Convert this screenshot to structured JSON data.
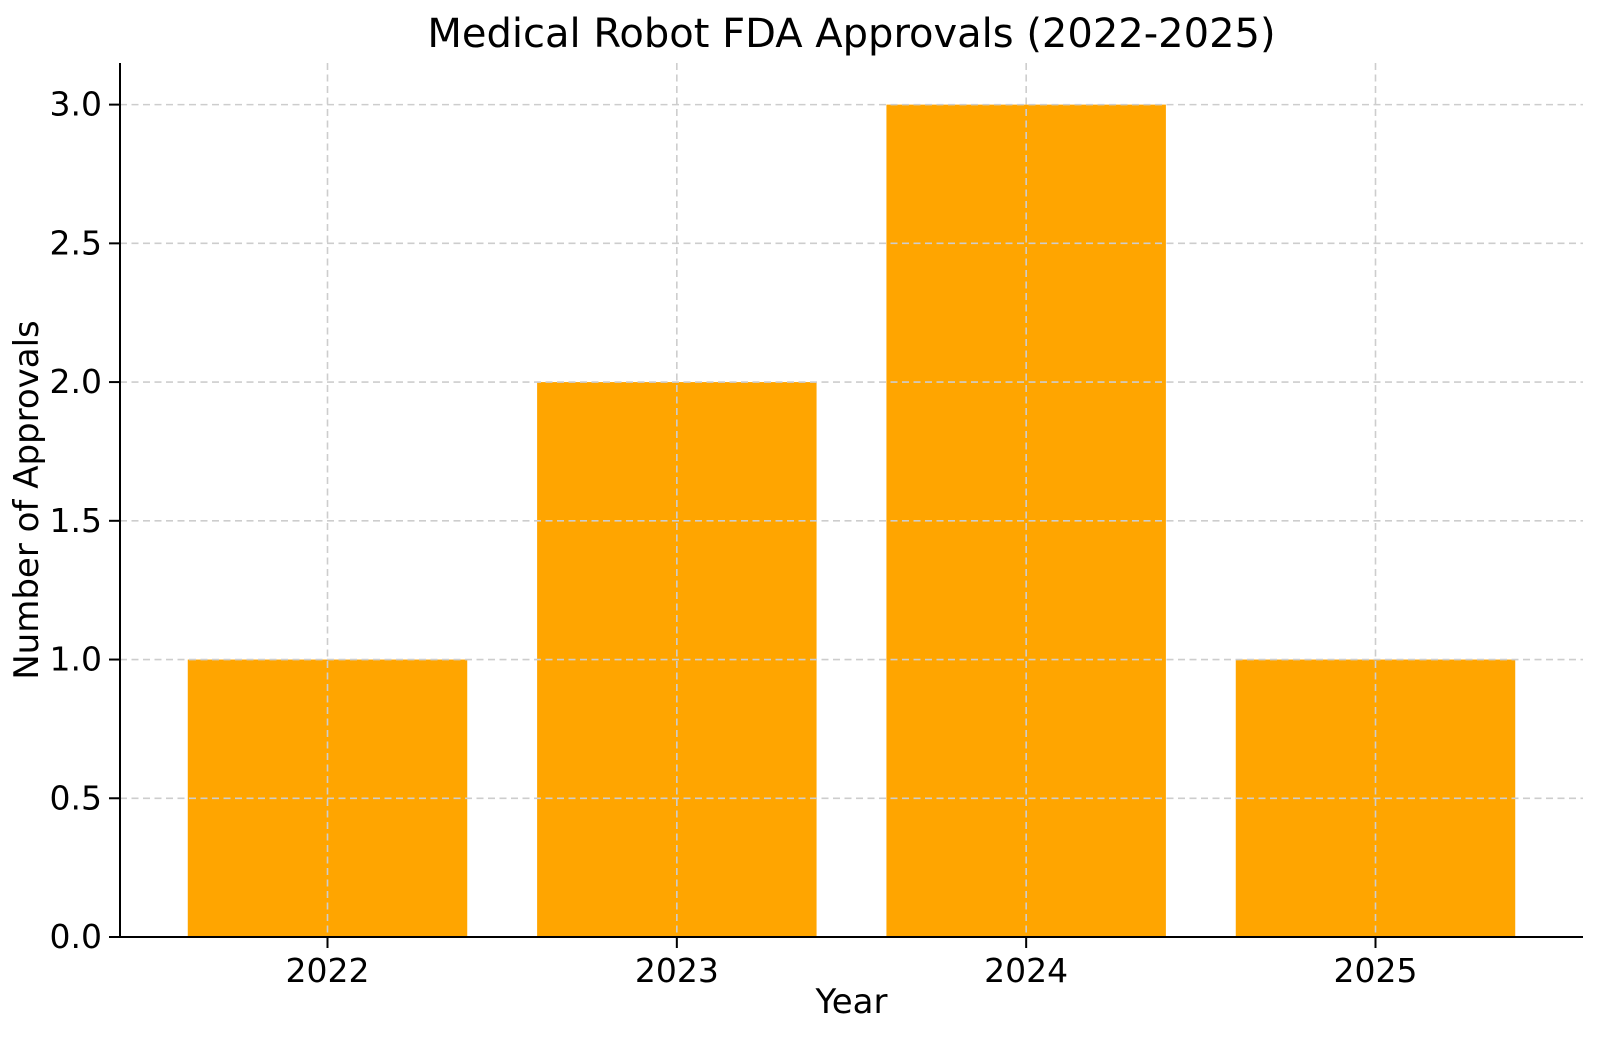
{
  "chart_data": {
    "type": "bar",
    "title": "Medical Robot FDA Approvals (2022-2025)",
    "xlabel": "Year",
    "ylabel": "Number of Approvals",
    "categories": [
      "2022",
      "2023",
      "2024",
      "2025"
    ],
    "values": [
      1,
      2,
      3,
      1
    ],
    "ylim": [
      0,
      3.15
    ],
    "yticks": [
      0,
      0.5,
      1,
      1.5,
      2,
      2.5,
      3
    ],
    "ytick_labels": [
      "0.0",
      "0.5",
      "1.0",
      "1.5",
      "2.0",
      "2.5",
      "3.0"
    ],
    "bar_color": "#FFA500",
    "bar_width_fraction": 0.8,
    "grid": true,
    "grid_color": "#cdcdcd",
    "grid_style": "dashed",
    "axis_color": "#000000",
    "text_color": "#000000",
    "background": "#ffffff",
    "legend": "none"
  }
}
